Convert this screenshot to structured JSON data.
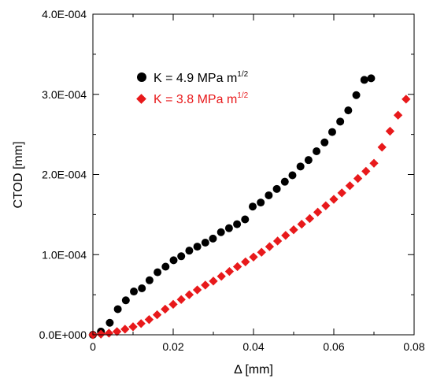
{
  "chart_data": {
    "type": "scatter",
    "title": "",
    "xlabel": "Δ [mm]",
    "ylabel": "CTOD [mm]",
    "xlim": [
      0,
      0.08
    ],
    "ylim": [
      0,
      0.0004
    ],
    "x_ticks": [
      0,
      0.02,
      0.04,
      0.06,
      0.08
    ],
    "x_tick_labels": [
      "0",
      "0.02",
      "0.04",
      "0.06",
      "0.08"
    ],
    "y_ticks": [
      0,
      0.0001,
      0.0002,
      0.0003,
      0.0004
    ],
    "y_tick_labels": [
      "0.0E+000",
      "1.0E-004",
      "2.0E-004",
      "3.0E-004",
      "4.0E-004"
    ],
    "grid": false,
    "legend_position": "top-left",
    "series": [
      {
        "name": "K = 4.9 MPa m",
        "name_sup": "1/2",
        "marker": "circle",
        "color": "#000000",
        "x": [
          0,
          0.002,
          0.0042,
          0.0062,
          0.0082,
          0.0102,
          0.0122,
          0.0141,
          0.0161,
          0.0181,
          0.0201,
          0.022,
          0.024,
          0.026,
          0.028,
          0.0299,
          0.0319,
          0.0339,
          0.0359,
          0.0379,
          0.0398,
          0.0418,
          0.0438,
          0.0458,
          0.0478,
          0.0497,
          0.0517,
          0.0537,
          0.0557,
          0.0577,
          0.0596,
          0.0616,
          0.0636,
          0.0656,
          0.0676,
          0.0693
        ],
        "y": [
          0,
          4e-06,
          1.5e-05,
          3.2e-05,
          4.3e-05,
          5.4e-05,
          5.8e-05,
          6.8e-05,
          7.8e-05,
          8.5e-05,
          9.3e-05,
          9.8e-05,
          0.000105,
          0.00011,
          0.000115,
          0.00012,
          0.000128,
          0.000133,
          0.000138,
          0.000144,
          0.00016,
          0.000165,
          0.000174,
          0.000182,
          0.000191,
          0.000199,
          0.00021,
          0.000218,
          0.000229,
          0.00024,
          0.000253,
          0.000266,
          0.00028,
          0.000299,
          0.000318,
          0.00032
        ]
      },
      {
        "name": "K = 3.8 MPa m",
        "name_sup": "1/2",
        "marker": "diamond",
        "color": "#e8191b",
        "x": [
          0,
          0.002,
          0.004,
          0.006,
          0.008,
          0.01,
          0.012,
          0.014,
          0.016,
          0.018,
          0.02,
          0.022,
          0.024,
          0.026,
          0.028,
          0.03,
          0.032,
          0.034,
          0.036,
          0.038,
          0.04,
          0.042,
          0.044,
          0.046,
          0.048,
          0.05,
          0.052,
          0.054,
          0.056,
          0.058,
          0.06,
          0.062,
          0.064,
          0.066,
          0.068,
          0.07,
          0.072,
          0.074,
          0.076,
          0.078
        ],
        "y": [
          0,
          8e-07,
          2e-06,
          4e-06,
          7e-06,
          1e-05,
          1.4e-05,
          1.9e-05,
          2.5e-05,
          3.2e-05,
          3.8e-05,
          4.4e-05,
          5e-05,
          5.6e-05,
          6.2e-05,
          6.7e-05,
          7.3e-05,
          7.9e-05,
          8.5e-05,
          9.1e-05,
          9.7e-05,
          0.000103,
          0.00011,
          0.000117,
          0.000124,
          0.000131,
          0.000138,
          0.000145,
          0.000153,
          0.000161,
          0.000169,
          0.000177,
          0.000186,
          0.000195,
          0.000204,
          0.000214,
          0.000234,
          0.000254,
          0.000274,
          0.000294
        ]
      }
    ]
  }
}
